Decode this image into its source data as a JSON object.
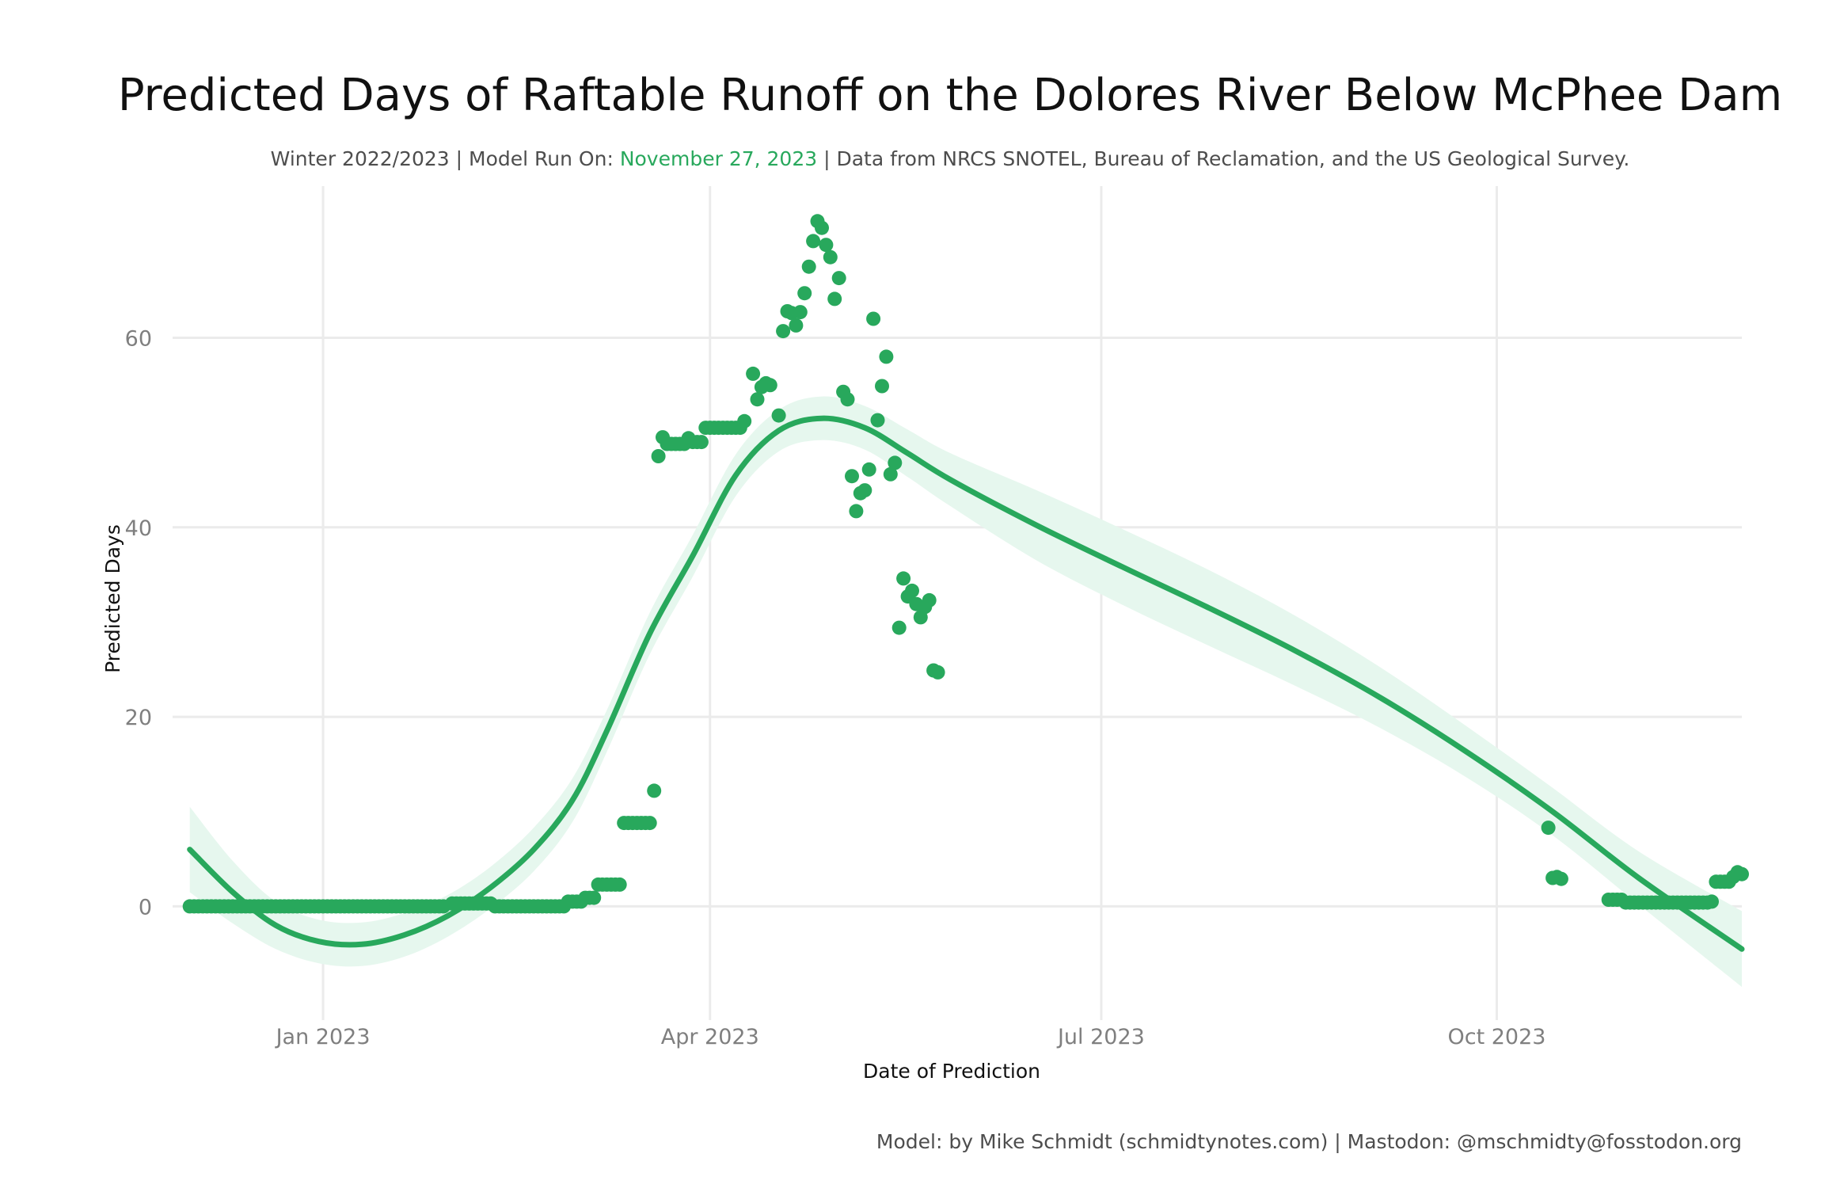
{
  "header": {
    "title": "Predicted Days of Raftable Runoff on the Dolores River Below McPhee Dam",
    "subtitle_prefix": "Winter 2022/2023 | Model Run On: ",
    "subtitle_date": "November 27, 2023",
    "subtitle_suffix": " | Data from NRCS SNOTEL, Bureau of Reclamation, and the US Geological Survey."
  },
  "caption": "Model: by Mike Schmidt (schmidtynotes.com) | Mastodon: @mschmidty@fosstodon.org",
  "colors": {
    "accent": "#28a85c",
    "ribbon": "#e6f7ee",
    "grid": "#ebebeb"
  },
  "chart_data": {
    "type": "scatter",
    "xlabel": "Date of Prediction",
    "ylabel": "Predicted Days",
    "xlim": [
      "2022-11-27",
      "2023-11-27"
    ],
    "ylim": [
      -12,
      76
    ],
    "grid": true,
    "x_ticks": [
      {
        "date": "2023-01-01",
        "label": "Jan 2023"
      },
      {
        "date": "2023-04-01",
        "label": "Apr 2023"
      },
      {
        "date": "2023-07-01",
        "label": "Jul 2023"
      },
      {
        "date": "2023-10-01",
        "label": "Oct 2023"
      }
    ],
    "y_ticks": [
      0,
      20,
      40,
      60
    ],
    "points": [
      {
        "from": "2022-12-01",
        "to": "2023-01-29",
        "y": 0
      },
      {
        "from": "2023-01-31",
        "to": "2023-02-09",
        "y": 0.3
      },
      {
        "from": "2023-02-10",
        "to": "2023-02-26",
        "y": 0
      },
      {
        "from": "2023-02-27",
        "to": "2023-03-02",
        "y": 0.5
      },
      {
        "from": "2023-03-03",
        "to": "2023-03-05",
        "y": 0.9
      },
      {
        "from": "2023-03-06",
        "to": "2023-03-11",
        "y": 2.3
      },
      {
        "from": "2023-03-12",
        "to": "2023-03-18",
        "y": 8.8
      },
      {
        "x": "2023-03-19",
        "y": 12.2
      },
      {
        "x": "2023-03-20",
        "y": 47.5
      },
      {
        "x": "2023-03-21",
        "y": 49.5
      },
      {
        "from": "2023-03-22",
        "to": "2023-03-26",
        "y": 48.8
      },
      {
        "x": "2023-03-27",
        "y": 49.4
      },
      {
        "from": "2023-03-28",
        "to": "2023-03-30",
        "y": 49
      },
      {
        "from": "2023-03-31",
        "to": "2023-04-08",
        "y": 50.5
      },
      {
        "x": "2023-04-09",
        "y": 51.2
      },
      {
        "x": "2023-04-11",
        "y": 56.2
      },
      {
        "x": "2023-04-12",
        "y": 53.5
      },
      {
        "x": "2023-04-13",
        "y": 54.8
      },
      {
        "x": "2023-04-14",
        "y": 55.2
      },
      {
        "x": "2023-04-15",
        "y": 55
      },
      {
        "x": "2023-04-17",
        "y": 51.8
      },
      {
        "x": "2023-04-18",
        "y": 60.7
      },
      {
        "x": "2023-04-19",
        "y": 62.8
      },
      {
        "x": "2023-04-20",
        "y": 62.6
      },
      {
        "x": "2023-04-21",
        "y": 61.3
      },
      {
        "x": "2023-04-22",
        "y": 62.7
      },
      {
        "x": "2023-04-23",
        "y": 64.7
      },
      {
        "x": "2023-04-24",
        "y": 67.5
      },
      {
        "x": "2023-04-25",
        "y": 70.2
      },
      {
        "x": "2023-04-26",
        "y": 72.3
      },
      {
        "x": "2023-04-27",
        "y": 71.6
      },
      {
        "x": "2023-04-28",
        "y": 69.8
      },
      {
        "x": "2023-04-29",
        "y": 68.5
      },
      {
        "x": "2023-04-30",
        "y": 64.1
      },
      {
        "x": "2023-05-01",
        "y": 66.3
      },
      {
        "x": "2023-05-02",
        "y": 54.3
      },
      {
        "x": "2023-05-03",
        "y": 53.5
      },
      {
        "x": "2023-05-04",
        "y": 45.4
      },
      {
        "x": "2023-05-05",
        "y": 41.7
      },
      {
        "x": "2023-05-06",
        "y": 43.6
      },
      {
        "x": "2023-05-07",
        "y": 43.9
      },
      {
        "x": "2023-05-08",
        "y": 46.1
      },
      {
        "x": "2023-05-09",
        "y": 62
      },
      {
        "x": "2023-05-10",
        "y": 51.3
      },
      {
        "x": "2023-05-11",
        "y": 54.9
      },
      {
        "x": "2023-05-12",
        "y": 58
      },
      {
        "x": "2023-05-13",
        "y": 45.6
      },
      {
        "x": "2023-05-14",
        "y": 46.8
      },
      {
        "x": "2023-05-15",
        "y": 29.4
      },
      {
        "x": "2023-05-16",
        "y": 34.6
      },
      {
        "x": "2023-05-17",
        "y": 32.7
      },
      {
        "x": "2023-05-18",
        "y": 33.3
      },
      {
        "x": "2023-05-19",
        "y": 31.9
      },
      {
        "x": "2023-05-20",
        "y": 30.5
      },
      {
        "x": "2023-05-21",
        "y": 31.6
      },
      {
        "x": "2023-05-22",
        "y": 32.3
      },
      {
        "x": "2023-05-23",
        "y": 24.9
      },
      {
        "x": "2023-05-24",
        "y": 24.7
      },
      {
        "x": "2023-10-13",
        "y": 8.3
      },
      {
        "x": "2023-10-14",
        "y": 3
      },
      {
        "x": "2023-10-15",
        "y": 3.1
      },
      {
        "x": "2023-10-16",
        "y": 2.9
      },
      {
        "from": "2023-10-27",
        "to": "2023-10-30",
        "y": 0.7
      },
      {
        "from": "2023-10-31",
        "to": "2023-11-19",
        "y": 0.4
      },
      {
        "x": "2023-11-20",
        "y": 0.5
      },
      {
        "from": "2023-11-21",
        "to": "2023-11-24",
        "y": 2.6
      },
      {
        "x": "2023-11-25",
        "y": 3.1
      },
      {
        "x": "2023-11-26",
        "y": 3.6
      },
      {
        "x": "2023-11-27",
        "y": 3.4
      }
    ],
    "smooth": [
      {
        "x": "2022-12-01",
        "y": 6,
        "lo": 1.5,
        "hi": 10.5
      },
      {
        "x": "2022-12-11",
        "y": 1.5,
        "lo": -1.8,
        "hi": 4.8
      },
      {
        "x": "2022-12-21",
        "y": -2,
        "lo": -4.5,
        "hi": 0.5
      },
      {
        "x": "2022-12-31",
        "y": -3.7,
        "lo": -6,
        "hi": -1.4
      },
      {
        "x": "2023-01-10",
        "y": -4,
        "lo": -6.3,
        "hi": -1.7
      },
      {
        "x": "2023-01-20",
        "y": -3,
        "lo": -5.3,
        "hi": -0.7
      },
      {
        "x": "2023-01-30",
        "y": -1,
        "lo": -3.2,
        "hi": 1.2
      },
      {
        "x": "2023-02-09",
        "y": 2,
        "lo": -0.2,
        "hi": 4.2
      },
      {
        "x": "2023-02-19",
        "y": 6,
        "lo": 3.7,
        "hi": 8.3
      },
      {
        "x": "2023-02-28",
        "y": 11.2,
        "lo": 8.9,
        "hi": 13.5
      },
      {
        "x": "2023-03-08",
        "y": 18.5,
        "lo": 16.3,
        "hi": 20.7
      },
      {
        "x": "2023-03-18",
        "y": 28.8,
        "lo": 26.6,
        "hi": 31
      },
      {
        "x": "2023-03-28",
        "y": 37,
        "lo": 34.8,
        "hi": 39.2
      },
      {
        "x": "2023-04-07",
        "y": 45.5,
        "lo": 43.3,
        "hi": 47.7
      },
      {
        "x": "2023-04-17",
        "y": 50.2,
        "lo": 48,
        "hi": 52.4
      },
      {
        "x": "2023-04-27",
        "y": 51.5,
        "lo": 49.2,
        "hi": 53.8
      },
      {
        "x": "2023-05-07",
        "y": 50.5,
        "lo": 48.2,
        "hi": 52.8
      },
      {
        "x": "2023-05-17",
        "y": 47.8,
        "lo": 45.3,
        "hi": 50.3
      },
      {
        "x": "2023-05-27",
        "y": 45,
        "lo": 42.2,
        "hi": 47.8
      },
      {
        "x": "2023-06-16",
        "y": 40.2,
        "lo": 36.5,
        "hi": 43.9
      },
      {
        "x": "2023-07-06",
        "y": 35.8,
        "lo": 31.8,
        "hi": 39.8
      },
      {
        "x": "2023-07-26",
        "y": 31.5,
        "lo": 27.5,
        "hi": 35.5
      },
      {
        "x": "2023-08-15",
        "y": 27,
        "lo": 23.3,
        "hi": 30.7
      },
      {
        "x": "2023-09-04",
        "y": 22,
        "lo": 18.8,
        "hi": 25.2
      },
      {
        "x": "2023-09-24",
        "y": 16.3,
        "lo": 13.6,
        "hi": 19
      },
      {
        "x": "2023-10-14",
        "y": 10,
        "lo": 7.5,
        "hi": 12.5
      },
      {
        "x": "2023-11-03",
        "y": 3,
        "lo": 0.2,
        "hi": 5.8
      },
      {
        "x": "2023-11-27",
        "y": -4.5,
        "lo": -8.5,
        "hi": -0.5
      }
    ]
  }
}
